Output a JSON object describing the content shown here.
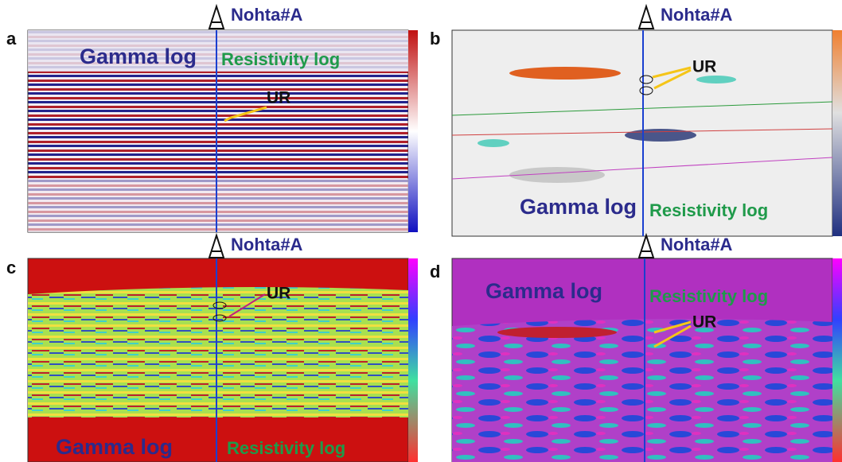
{
  "panels": [
    {
      "label": "a",
      "well": "Nohta#A",
      "gamma": "Gamma log",
      "resistivity": "Resistivity log",
      "ur": "UR"
    },
    {
      "label": "b",
      "well": "Nohta#A",
      "gamma": "Gamma log",
      "resistivity": "Resistivity log",
      "ur": "UR"
    },
    {
      "label": "c",
      "well": "Nohta#A",
      "gamma": "Gamma log",
      "resistivity": "Resistivity log",
      "ur": "UR"
    },
    {
      "label": "d",
      "well": "Nohta#A",
      "gamma": "Gamma log",
      "resistivity": "Resistivity log",
      "ur": "UR"
    }
  ]
}
